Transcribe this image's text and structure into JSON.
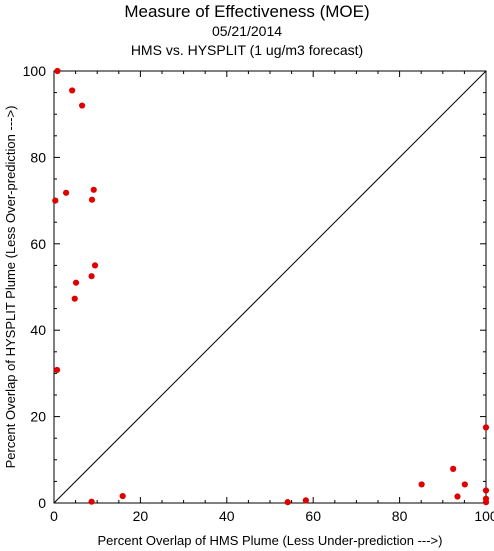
{
  "chart_data": {
    "type": "scatter",
    "title": "Measure of Effectiveness (MOE)",
    "subtitle_date": "05/21/2014",
    "subtitle": "HMS vs. HYSPLIT  (1 ug/m3 forecast)",
    "xlabel": "Percent Overlap of HMS Plume (Less Under-prediction --->)",
    "ylabel": "Percent Overlap of HYSPLIT Plume (Less Over-prediction --->)",
    "xlim": [
      0,
      100
    ],
    "ylim": [
      0,
      100
    ],
    "xticks": [
      "0",
      "20",
      "40",
      "60",
      "80",
      "100"
    ],
    "yticks": [
      "0",
      "20",
      "40",
      "60",
      "80",
      "100"
    ],
    "diagonal_reference_line": true,
    "grid": false,
    "point_color": "#e00000",
    "points": [
      {
        "x": 0.8,
        "y": 100
      },
      {
        "x": 4.2,
        "y": 95.5
      },
      {
        "x": 6.5,
        "y": 92
      },
      {
        "x": 0.3,
        "y": 70
      },
      {
        "x": 2.8,
        "y": 71.8
      },
      {
        "x": 9.2,
        "y": 72.5
      },
      {
        "x": 8.8,
        "y": 70.2
      },
      {
        "x": 9.5,
        "y": 55
      },
      {
        "x": 8.7,
        "y": 52.5
      },
      {
        "x": 5.1,
        "y": 51
      },
      {
        "x": 4.8,
        "y": 47.3
      },
      {
        "x": 0.7,
        "y": 30.8
      },
      {
        "x": 8.7,
        "y": 0.3
      },
      {
        "x": 15.9,
        "y": 1.6
      },
      {
        "x": 54.1,
        "y": 0.2
      },
      {
        "x": 58.3,
        "y": 0.6
      },
      {
        "x": 85.1,
        "y": 4.3
      },
      {
        "x": 92.4,
        "y": 7.9
      },
      {
        "x": 93.4,
        "y": 1.5
      },
      {
        "x": 95.1,
        "y": 4.3
      },
      {
        "x": 100,
        "y": 17.5
      },
      {
        "x": 100,
        "y": 2.9
      },
      {
        "x": 100,
        "y": 1.0
      },
      {
        "x": 100,
        "y": 0.2
      }
    ]
  }
}
